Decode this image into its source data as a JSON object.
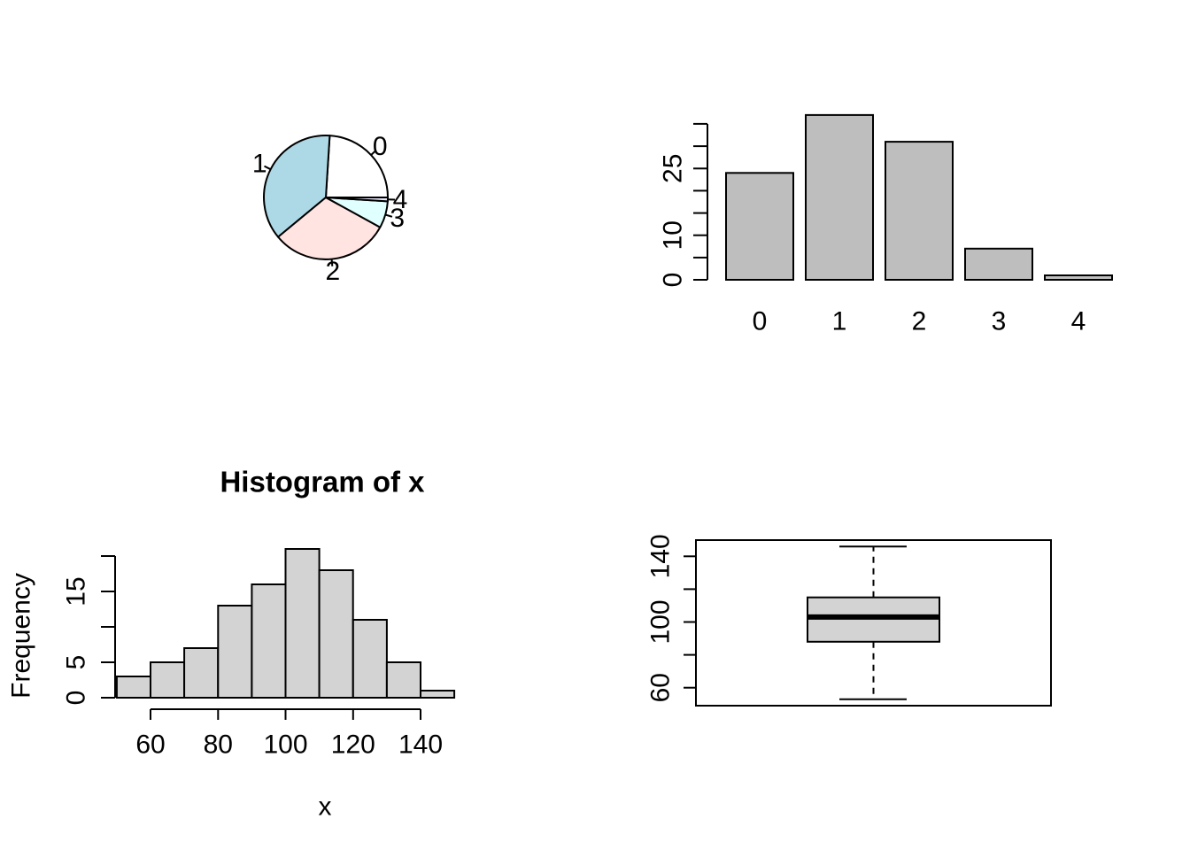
{
  "figure": {
    "background": "#FFFFFF",
    "stroke_color": "#000000"
  },
  "chart_data": [
    {
      "type": "pie",
      "panel": "top-left",
      "categories": [
        "0",
        "1",
        "2",
        "3",
        "4"
      ],
      "values": [
        24,
        37,
        31,
        7,
        1
      ],
      "colors": [
        "#FFFFFF",
        "#ADD8E6",
        "#FFE4E1",
        "#E0FFFF",
        "#E6E6FA"
      ],
      "start_angle_deg": 0,
      "direction": "counterclockwise",
      "legend": "none"
    },
    {
      "type": "bar",
      "panel": "top-right",
      "categories": [
        "0",
        "1",
        "2",
        "3",
        "4"
      ],
      "values": [
        24,
        37,
        31,
        7,
        1
      ],
      "bar_fill": "#BEBEBE",
      "ylim": [
        0,
        37
      ],
      "y_ticks": [
        0,
        5,
        10,
        15,
        20,
        25,
        30,
        35
      ],
      "y_tick_labels_shown": [
        {
          "value": 0,
          "label": "0"
        },
        {
          "value": 10,
          "label": "10"
        },
        {
          "value": 25,
          "label": "25"
        }
      ],
      "grid": "off"
    },
    {
      "type": "histogram",
      "panel": "bottom-left",
      "title": "Histogram of x",
      "xlabel": "x",
      "ylabel": "Frequency",
      "bin_edges": [
        50,
        60,
        70,
        80,
        90,
        100,
        110,
        120,
        130,
        140,
        150
      ],
      "counts": [
        3,
        5,
        7,
        13,
        16,
        21,
        18,
        11,
        5,
        1
      ],
      "bar_fill": "#D3D3D3",
      "xlim": [
        50,
        150
      ],
      "ylim": [
        0,
        21
      ],
      "x_ticks": [
        60,
        80,
        100,
        120,
        140
      ],
      "x_tick_labels_shown": [
        {
          "value": 60,
          "label": "60"
        },
        {
          "value": 80,
          "label": "80"
        },
        {
          "value": 100,
          "label": "100"
        },
        {
          "value": 120,
          "label": "120"
        },
        {
          "value": 140,
          "label": "140"
        }
      ],
      "y_ticks": [
        0,
        5,
        10,
        15,
        20
      ],
      "y_tick_labels_shown": [
        {
          "value": 0,
          "label": "0"
        },
        {
          "value": 5,
          "label": "5"
        },
        {
          "value": 15,
          "label": "15"
        }
      ],
      "grid": "off"
    },
    {
      "type": "boxplot",
      "panel": "bottom-right",
      "stats": {
        "whisker_low": 53,
        "q1": 88,
        "median": 103,
        "q3": 115,
        "whisker_high": 146
      },
      "box_fill": "#D3D3D3",
      "whisker_style": "dashed",
      "ylim": [
        53,
        146
      ],
      "y_ticks": [
        60,
        80,
        100,
        120,
        140
      ],
      "y_tick_labels_shown": [
        {
          "value": 60,
          "label": "60"
        },
        {
          "value": 100,
          "label": "100"
        },
        {
          "value": 140,
          "label": "140"
        }
      ],
      "frame": "on",
      "grid": "off"
    }
  ]
}
